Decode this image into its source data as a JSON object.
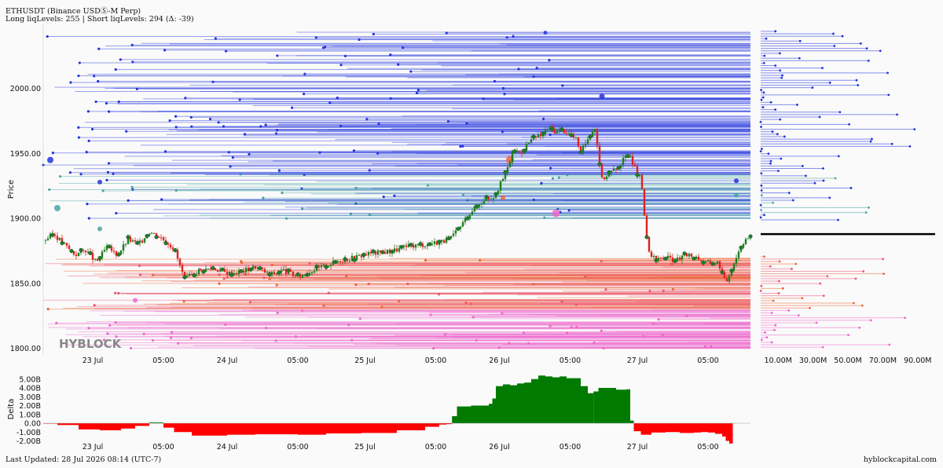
{
  "header": {
    "title": "ETHUSDT (Binance USDⓈ-M Perp)",
    "levels": "Long liqLevels: 255 | Short liqLevels: 294 (Δ: -39)"
  },
  "footer": {
    "updated": "Last Updated: 28 Jul 2026 08:14 (UTC-7)",
    "site": "hyblockcapital.com"
  },
  "watermark": "HYBLOCK",
  "colors": {
    "up": "#1e7e1e",
    "down": "#dd2222",
    "short_liq": "#2233dd",
    "short_liq_far": "#4aa3a3",
    "long_liq": "#ee6633",
    "long_liq_far": "#ee66cc",
    "delta_pos": "#007a00",
    "delta_neg": "#ff0000",
    "current_price_line": "#000000"
  },
  "chart_data": [
    {
      "type": "line",
      "title": "",
      "ylabel": "Price",
      "xlabel": "",
      "ylim": [
        1795,
        2050
      ],
      "x_range": [
        0,
        100
      ],
      "y_ticks": [
        "2000.00",
        "1950.00",
        "1900.00",
        "1850.00",
        "1800.00"
      ],
      "y_tick_values": [
        2000,
        1950,
        1900,
        1850,
        1800
      ],
      "x_ticks": [
        "23 Jul",
        "05:00",
        "24 Jul",
        "05:00",
        "25 Jul",
        "05:00",
        "26 Jul",
        "05:00",
        "27 Jul",
        "05:00"
      ],
      "x_tick_values": [
        7,
        17,
        26,
        36,
        45.5,
        55.5,
        64.5,
        74.5,
        84,
        94
      ],
      "series": [
        {
          "x": [
            0,
            1.5,
            3,
            4.5,
            6,
            7.5,
            9,
            10.5,
            12,
            13.5,
            15,
            16.5,
            17.5,
            18.5,
            20,
            22,
            24,
            26,
            28,
            30,
            32,
            34,
            36,
            38,
            40,
            42,
            44,
            46,
            48,
            50,
            52,
            54,
            56,
            57.5,
            58.5,
            59.5,
            60.5,
            61.5,
            62.5,
            63.5,
            64,
            64.5,
            65.5,
            66.5,
            67.5,
            68.5,
            69.5,
            70.5,
            71.5,
            72.5,
            73.5,
            74.5,
            75.5,
            76,
            77,
            78,
            79,
            80,
            81,
            82,
            83,
            83.5,
            84.5,
            85.5,
            86.5,
            88,
            89.5,
            91,
            92.5,
            93.5,
            94.5,
            95.5,
            96.5,
            97.5,
            98.5,
            99.3
          ],
          "values": [
            1883,
            1888,
            1880,
            1872,
            1876,
            1866,
            1878,
            1872,
            1884,
            1880,
            1890,
            1886,
            1882,
            1877,
            1853,
            1860,
            1862,
            1858,
            1859,
            1863,
            1857,
            1860,
            1855,
            1860,
            1864,
            1868,
            1870,
            1873,
            1874,
            1876,
            1879,
            1880,
            1882,
            1884,
            1890,
            1898,
            1906,
            1910,
            1916,
            1916,
            1920,
            1925,
            1936,
            1953,
            1950,
            1958,
            1962,
            1964,
            1970,
            1967,
            1968,
            1965,
            1960,
            1950,
            1962,
            1970,
            1930,
            1935,
            1938,
            1945,
            1950,
            1940,
            1930,
            1875,
            1868,
            1870,
            1868,
            1872,
            1870,
            1866,
            1866,
            1866,
            1850,
            1864,
            1877,
            1885
          ]
        }
      ],
      "liquidation_levels": {
        "short_min": 1900,
        "short_max": 2045,
        "long_min": 1800,
        "long_max": 1870
      },
      "current_price": 1888
    },
    {
      "type": "bar",
      "title": "",
      "ylabel": "",
      "xlabel": "",
      "ylim": [
        0,
        100000000
      ],
      "x_ticks": [
        "10.00M",
        "30.00M",
        "50.00M",
        "70.00M",
        "90.00M"
      ],
      "x_tick_values": [
        10000000,
        30000000,
        50000000,
        70000000,
        90000000
      ],
      "bins": {
        "price_range": [
          1800,
          2045
        ],
        "count": 130,
        "max": 92000000
      }
    },
    {
      "type": "area",
      "title": "",
      "ylabel": "Delta",
      "xlabel": "",
      "ylim": [
        -2.4,
        5.6
      ],
      "y_ticks": [
        "5.00B",
        "4.00B",
        "3.00B",
        "2.00B",
        "1.00B",
        "0.00",
        "-1.00B",
        "-2.00B"
      ],
      "y_tick_values": [
        5,
        4,
        3,
        2,
        1,
        0,
        -1,
        -2
      ],
      "x_ticks": [
        "23 Jul",
        "05:00",
        "24 Jul",
        "05:00",
        "25 Jul",
        "05:00",
        "26 Jul",
        "05:00",
        "27 Jul",
        "05:00"
      ],
      "x_tick_values": [
        7,
        17,
        26,
        36,
        45.5,
        55.5,
        64.5,
        74.5,
        84,
        94
      ],
      "series": [
        {
          "x": [
            0,
            2,
            5,
            8,
            11,
            13,
            15,
            17,
            18.5,
            21,
            26,
            30,
            36,
            40,
            45,
            50,
            54,
            56,
            57,
            57.8,
            58.5,
            60.5,
            63,
            63.5,
            64,
            65,
            66,
            67,
            68,
            69,
            70,
            71,
            72,
            73,
            74,
            75,
            76,
            77,
            77.8,
            78.5,
            80,
            81,
            82.5,
            83,
            83.5,
            84.5,
            86,
            88,
            90,
            92,
            93,
            94,
            95,
            96,
            96.5,
            97,
            97.5
          ],
          "values": [
            -0.05,
            -0.2,
            -0.7,
            -0.8,
            -0.6,
            -0.3,
            0.1,
            -0.5,
            -1.0,
            -1.4,
            -1.3,
            -1.25,
            -1.3,
            -1.15,
            -1.1,
            -0.8,
            -0.4,
            -0.15,
            -0.1,
            0.8,
            1.9,
            2.0,
            2.2,
            2.8,
            4.2,
            4.4,
            4.3,
            4.5,
            4.6,
            5.0,
            5.4,
            5.3,
            5.2,
            5.3,
            5.1,
            5.1,
            4.2,
            3.4,
            3.6,
            4.0,
            4.0,
            3.8,
            3.85,
            0.3,
            -0.9,
            -1.3,
            -1.05,
            -1.0,
            -1.1,
            -1.05,
            -1.0,
            -1.05,
            -1.2,
            -1.5,
            -2.0,
            -2.3,
            -2.1
          ]
        }
      ]
    }
  ]
}
